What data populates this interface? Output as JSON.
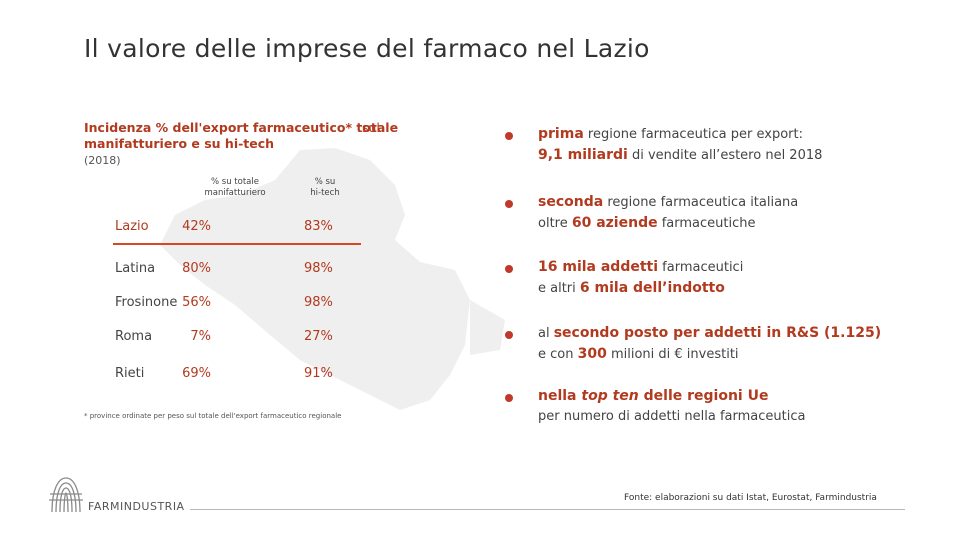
{
  "title": "Il valore delle imprese del farmaco nel Lazio",
  "table": {
    "subtitle": "Incidenza % dell'export farmaceutico* totale manifatturiero e su hi-tech",
    "subtitle_sul": "sul",
    "year": "(2018)",
    "col1_header_a": "% su totale",
    "col1_header_b": "manifatturiero",
    "col2_header_a": "% su",
    "col2_header_b": "hi-tech",
    "rows": [
      {
        "name": "Lazio",
        "manifatturiero": "42%",
        "hitech": "83%"
      },
      {
        "name": "Latina",
        "manifatturiero": "80%",
        "hitech": "98%"
      },
      {
        "name": "Frosinone",
        "manifatturiero": "56%",
        "hitech": "98%"
      },
      {
        "name": "Roma",
        "manifatturiero": "7%",
        "hitech": "27%"
      },
      {
        "name": "Rieti",
        "manifatturiero": "69%",
        "hitech": "91%"
      }
    ],
    "footnote": "* province ordinate per peso sul totale dell'export farmaceutico regionale"
  },
  "bullets": {
    "b1": {
      "hl1": "prima",
      "t1": " regione farmaceutica per export:",
      "hl2": "9,1 miliardi",
      "t2": " di vendite all’estero nel 2018"
    },
    "b2": {
      "hl1": "seconda",
      "t1": " regione farmaceutica italiana",
      "t2a": "oltre ",
      "hl2": "60 aziende",
      "t2b": " farmaceutiche"
    },
    "b3": {
      "hl1": "16 mila addetti",
      "t1": " farmaceutici",
      "t2a": "e altri ",
      "hl2": "6 mila dell’indotto"
    },
    "b4": {
      "t1a": "al ",
      "hl1": "secondo posto per addetti in R&S (1.125)",
      "t2a": "e con ",
      "hl2": "300",
      "t2b": " milioni di € investiti"
    },
    "b5": {
      "hl1a": "nella ",
      "hl1b": "top ten",
      "hl1c": " delle regioni Ue",
      "t2": "per numero di addetti nella farmaceutica"
    }
  },
  "footer": {
    "logo_text": "FARMINDUSTRIA",
    "source": "Fonte: elaborazioni su dati Istat, Eurostat, Farmindustria"
  },
  "colors": {
    "accent": "#b23a1e",
    "map": "#efefef",
    "underline": "#d34a24"
  }
}
